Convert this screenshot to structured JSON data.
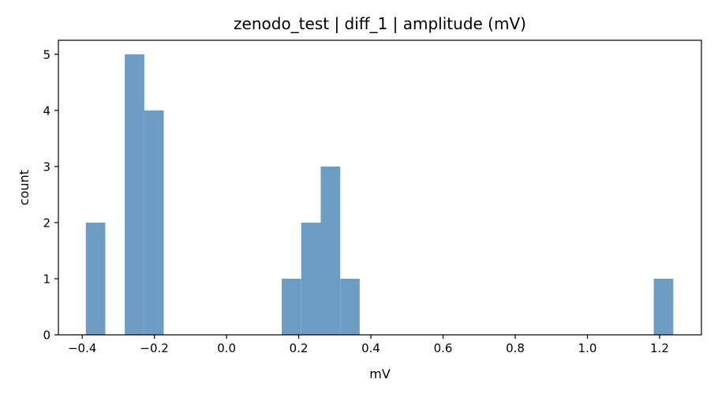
{
  "chart_data": {
    "type": "bar",
    "title": "zenodo_test | diff_1 | amplitude (mV)",
    "xlabel": "mV",
    "ylabel": "count",
    "xlim": [
      -0.466,
      1.316
    ],
    "ylim": [
      0,
      5.25
    ],
    "xticks": [
      {
        "value": -0.4,
        "label": "−0.4"
      },
      {
        "value": -0.2,
        "label": "−0.2"
      },
      {
        "value": 0.0,
        "label": "0.0"
      },
      {
        "value": 0.2,
        "label": "0.2"
      },
      {
        "value": 0.4,
        "label": "0.4"
      },
      {
        "value": 0.6,
        "label": "0.6"
      },
      {
        "value": 0.8,
        "label": "0.8"
      },
      {
        "value": 1.0,
        "label": "1.0"
      },
      {
        "value": 1.2,
        "label": "1.2"
      }
    ],
    "yticks": [
      {
        "value": 0,
        "label": "0"
      },
      {
        "value": 1,
        "label": "1"
      },
      {
        "value": 2,
        "label": "2"
      },
      {
        "value": 3,
        "label": "3"
      },
      {
        "value": 4,
        "label": "4"
      },
      {
        "value": 5,
        "label": "5"
      }
    ],
    "bins": [
      {
        "x0": -0.39,
        "x1": -0.336,
        "count": 2
      },
      {
        "x0": -0.282,
        "x1": -0.228,
        "count": 5
      },
      {
        "x0": -0.228,
        "x1": -0.174,
        "count": 4
      },
      {
        "x0": 0.153,
        "x1": 0.207,
        "count": 1
      },
      {
        "x0": 0.207,
        "x1": 0.261,
        "count": 2
      },
      {
        "x0": 0.261,
        "x1": 0.315,
        "count": 3
      },
      {
        "x0": 0.315,
        "x1": 0.369,
        "count": 1
      },
      {
        "x0": 1.184,
        "x1": 1.238,
        "count": 1
      }
    ],
    "bar_color": "#6b9dc5",
    "grid": false,
    "legend": "none"
  }
}
